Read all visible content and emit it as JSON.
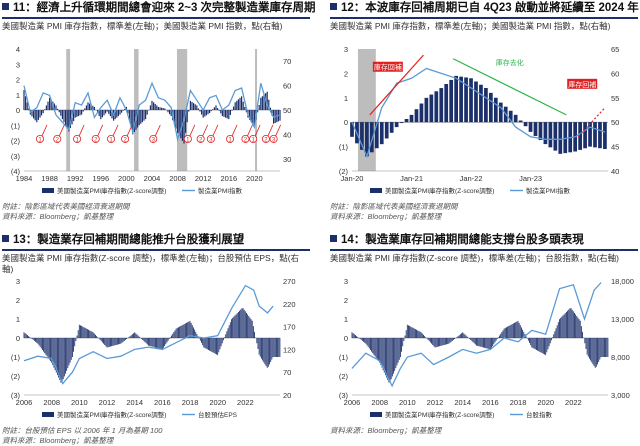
{
  "chart_data": [
    {
      "type": "bar",
      "title": "11：經濟上升循環期間總會迎來 2~3 次完整製造業庫存周期",
      "subtitle": "美國製造業 PMI 庫存指數，標準差(左軸)；美國製造業 PMI 指數，點(右軸)",
      "x_range": [
        1984,
        2024
      ],
      "x_ticks": [
        "1984",
        "1988",
        "1992",
        "1996",
        "2000",
        "2004",
        "2008",
        "2012",
        "2016",
        "2020"
      ],
      "y_left_ticks": [
        "4",
        "3",
        "2",
        "1",
        "0",
        "(1)",
        "(2)",
        "(3)",
        "(4)"
      ],
      "y_left_range": [
        -4,
        4
      ],
      "y_right_ticks": [
        "70",
        "60",
        "50",
        "40",
        "30"
      ],
      "y_right_range": [
        25,
        75
      ],
      "recession_periods": [
        [
          1990.6,
          1991.2
        ],
        [
          2001.2,
          2001.9
        ],
        [
          2007.9,
          2009.5
        ],
        [
          2020.1,
          2020.4
        ]
      ],
      "cycle_labels": [
        "1",
        "2",
        "1",
        "2",
        "1",
        "2",
        "3",
        "1",
        "2",
        "3",
        "1",
        "2",
        "1",
        "2",
        "3"
      ],
      "cycle_label_x": [
        1986.5,
        1989.2,
        1992.3,
        1995.2,
        1997.6,
        1999.8,
        2004.2,
        2009.6,
        2011.6,
        2013.2,
        2016.2,
        2018.6,
        2019.8,
        2021.8,
        2023.0
      ],
      "series": [
        {
          "name": "美國製造業PMI庫存指數(Z-score調整)",
          "values": [
            [
              1984,
              1.3
            ],
            [
              1985,
              -0.3
            ],
            [
              1986,
              -0.8
            ],
            [
              1987,
              -0.2
            ],
            [
              1988,
              0.8
            ],
            [
              1989,
              0.3
            ],
            [
              1990,
              -0.6
            ],
            [
              1991,
              -1.4
            ],
            [
              1992,
              -0.5
            ],
            [
              1993,
              -0.3
            ],
            [
              1994,
              0.5
            ],
            [
              1995,
              0.2
            ],
            [
              1996,
              -0.6
            ],
            [
              1997,
              -0.1
            ],
            [
              1998,
              -0.7
            ],
            [
              1999,
              -0.3
            ],
            [
              2000,
              0.2
            ],
            [
              2001,
              -1.6
            ],
            [
              2002,
              -1.0
            ],
            [
              2003,
              -0.6
            ],
            [
              2004,
              0.6
            ],
            [
              2005,
              0.2
            ],
            [
              2006,
              0.1
            ],
            [
              2007,
              -0.4
            ],
            [
              2008,
              -1.5
            ],
            [
              2009,
              -2.2
            ],
            [
              2010,
              0.6
            ],
            [
              2011,
              0.3
            ],
            [
              2012,
              -0.5
            ],
            [
              2013,
              -0.2
            ],
            [
              2014,
              0.3
            ],
            [
              2015,
              -0.4
            ],
            [
              2016,
              -0.6
            ],
            [
              2017,
              0.5
            ],
            [
              2018,
              0.9
            ],
            [
              2019,
              -0.5
            ],
            [
              2020,
              -1.1
            ],
            [
              2021,
              0.8
            ],
            [
              2022,
              1.2
            ],
            [
              2023,
              -0.9
            ],
            [
              2024,
              -0.7
            ]
          ]
        },
        {
          "name": "製造業PMI指數",
          "values": [
            [
              1984,
              60
            ],
            [
              1985,
              49
            ],
            [
              1986,
              51
            ],
            [
              1987,
              57
            ],
            [
              1988,
              56
            ],
            [
              1989,
              48
            ],
            [
              1990,
              45
            ],
            [
              1991,
              42
            ],
            [
              1992,
              53
            ],
            [
              1993,
              52
            ],
            [
              1994,
              57
            ],
            [
              1995,
              47
            ],
            [
              1996,
              51
            ],
            [
              1997,
              54
            ],
            [
              1998,
              48
            ],
            [
              1999,
              55
            ],
            [
              2000,
              50
            ],
            [
              2001,
              41
            ],
            [
              2002,
              52
            ],
            [
              2003,
              54
            ],
            [
              2004,
              61
            ],
            [
              2005,
              55
            ],
            [
              2006,
              54
            ],
            [
              2007,
              51
            ],
            [
              2008,
              38
            ],
            [
              2009,
              46
            ],
            [
              2010,
              58
            ],
            [
              2011,
              54
            ],
            [
              2012,
              50
            ],
            [
              2013,
              55
            ],
            [
              2014,
              56
            ],
            [
              2015,
              50
            ],
            [
              2016,
              52
            ],
            [
              2017,
              58
            ],
            [
              2018,
              59
            ],
            [
              2019,
              48
            ],
            [
              2020,
              43
            ],
            [
              2021,
              61
            ],
            [
              2022,
              52
            ],
            [
              2023,
              47
            ],
            [
              2024,
              48
            ]
          ]
        }
      ],
      "legend": [
        "美國製造業PMI庫存指數(Z-score調整)",
        "製造業PMI指數"
      ],
      "legend_position": "bottom",
      "notes": [
        "附註：陰影區域代表美國經濟衰退期間",
        "資料來源：Bloomberg；凱基整理"
      ]
    },
    {
      "type": "bar",
      "title": "12：本波庫存回補周期已自 4Q23 啟動並將延續至 2024 年",
      "subtitle": "美國製造業 PMI 庫存指數，標準差(左軸)；美國製造業 PMI 指數，點(右軸)",
      "x_range": [
        2020.0,
        2024.3
      ],
      "x_ticks": [
        "Jan-20",
        "Jan-21",
        "Jan-22",
        "Jan-23"
      ],
      "y_left_ticks": [
        "3",
        "2",
        "1",
        "0",
        "(1)",
        "(2)"
      ],
      "y_left_range": [
        -2,
        3
      ],
      "y_right_ticks": [
        "65",
        "60",
        "55",
        "50",
        "45",
        "40"
      ],
      "y_right_range": [
        40,
        65
      ],
      "recession_periods": [
        [
          2020.1,
          2020.4
        ]
      ],
      "annotations": [
        "庫存回補",
        "庫存去化",
        "庫存回補"
      ],
      "series": [
        {
          "name": "美國製造業PMI庫存指數(Z-score調整)",
          "values": [
            [
              2020.0,
              -0.6
            ],
            [
              2020.25,
              -1.4
            ],
            [
              2020.5,
              -0.9
            ],
            [
              2020.75,
              -0.2
            ],
            [
              2021.0,
              0.3
            ],
            [
              2021.25,
              1.0
            ],
            [
              2021.5,
              1.4
            ],
            [
              2021.75,
              1.9
            ],
            [
              2022.0,
              1.8
            ],
            [
              2022.25,
              1.4
            ],
            [
              2022.5,
              0.8
            ],
            [
              2022.75,
              0.3
            ],
            [
              2023.0,
              -0.4
            ],
            [
              2023.25,
              -0.9
            ],
            [
              2023.5,
              -1.3
            ],
            [
              2023.75,
              -1.2
            ],
            [
              2024.0,
              -1.0
            ],
            [
              2024.25,
              -1.1
            ]
          ]
        },
        {
          "name": "製造業PMI指數",
          "values": [
            [
              2020.0,
              50
            ],
            [
              2020.25,
              43
            ],
            [
              2020.5,
              53
            ],
            [
              2020.75,
              58
            ],
            [
              2021.0,
              59
            ],
            [
              2021.25,
              61
            ],
            [
              2021.5,
              60
            ],
            [
              2021.75,
              59
            ],
            [
              2022.0,
              57
            ],
            [
              2022.25,
              55
            ],
            [
              2022.5,
              53
            ],
            [
              2022.75,
              49
            ],
            [
              2023.0,
              47
            ],
            [
              2023.25,
              46.5
            ],
            [
              2023.5,
              46.5
            ],
            [
              2023.75,
              47
            ],
            [
              2024.0,
              49
            ],
            [
              2024.25,
              48
            ]
          ]
        }
      ],
      "legend": [
        "美國製造業PMI庫存指數(Z-score調整)",
        "製造業PMI指數"
      ],
      "legend_position": "bottom",
      "notes": [
        "附註：陰影區域代表美國經濟衰退期間",
        "資料來源：Bloomberg；凱基整理"
      ]
    },
    {
      "type": "bar",
      "title": "13：製造業存回補期間總能推升台股獲利展望",
      "subtitle": "美國製造業 PMI 庫存指數(Z-score 調整)，標準差(左軸)；台股預估 EPS，點(右軸)",
      "x_range": [
        2006,
        2024.5
      ],
      "x_ticks": [
        "2006",
        "2008",
        "2010",
        "2012",
        "2014",
        "2016",
        "2018",
        "2020",
        "2022"
      ],
      "y_left_ticks": [
        "3",
        "2",
        "1",
        "0",
        "(1)",
        "(2)",
        "(3)"
      ],
      "y_left_range": [
        -3,
        3
      ],
      "y_right_ticks": [
        "270",
        "220",
        "170",
        "120",
        "70",
        "20"
      ],
      "y_right_range": [
        20,
        270
      ],
      "series": [
        {
          "name": "美國製造業PMI庫存指數(Z-score調整)",
          "values": [
            [
              2006,
              0.3
            ],
            [
              2007,
              -0.3
            ],
            [
              2008,
              -1.3
            ],
            [
              2008.7,
              -2.4
            ],
            [
              2009.5,
              -1.0
            ],
            [
              2010,
              0.7
            ],
            [
              2011,
              0.3
            ],
            [
              2012,
              -0.5
            ],
            [
              2013,
              -0.3
            ],
            [
              2014,
              0.3
            ],
            [
              2015,
              -0.4
            ],
            [
              2016,
              -0.6
            ],
            [
              2017,
              0.5
            ],
            [
              2018,
              0.9
            ],
            [
              2019,
              -0.5
            ],
            [
              2020,
              -0.9
            ],
            [
              2021,
              1.0
            ],
            [
              2021.8,
              1.6
            ],
            [
              2022.5,
              0.9
            ],
            [
              2023,
              -0.9
            ],
            [
              2023.6,
              -1.6
            ],
            [
              2024,
              -1.0
            ]
          ]
        },
        {
          "name": "台股預估EPS",
          "values": [
            [
              2006,
              95
            ],
            [
              2007,
              105
            ],
            [
              2008,
              100
            ],
            [
              2008.8,
              45
            ],
            [
              2009.5,
              70
            ],
            [
              2010,
              100
            ],
            [
              2011,
              115
            ],
            [
              2012,
              100
            ],
            [
              2013,
              105
            ],
            [
              2014,
              120
            ],
            [
              2015,
              125
            ],
            [
              2016,
              120
            ],
            [
              2017,
              135
            ],
            [
              2018,
              150
            ],
            [
              2019,
              145
            ],
            [
              2020,
              150
            ],
            [
              2021,
              210
            ],
            [
              2022,
              260
            ],
            [
              2022.6,
              250
            ],
            [
              2023,
              215
            ],
            [
              2023.6,
              200
            ],
            [
              2024,
              215
            ]
          ]
        }
      ],
      "legend": [
        "美國製造業PMI庫存指數(Z-score調整)",
        "台股預估EPS"
      ],
      "legend_position": "bottom",
      "notes": [
        "附註：台股預估 EPS 以 2006 年 1 月為基期 100",
        "資料來源：Bloomberg；凱基整理"
      ]
    },
    {
      "type": "bar",
      "title": "14：製造業庫存回補期間總能支撐台股多頭表現",
      "subtitle": "美國製造業 PMI 庫存指數(Z-score 調整)，標準差(左軸)；台股指數，點(右軸)",
      "x_range": [
        2006,
        2024.5
      ],
      "x_ticks": [
        "2006",
        "2008",
        "2010",
        "2012",
        "2014",
        "2016",
        "2018",
        "2020",
        "2022"
      ],
      "y_left_ticks": [
        "3",
        "2",
        "1",
        "0",
        "(1)",
        "(2)",
        "(3)"
      ],
      "y_left_range": [
        -3,
        3
      ],
      "y_right_ticks": [
        "18,000",
        "13,000",
        "8,000",
        "3,000"
      ],
      "y_right_range": [
        3000,
        18000
      ],
      "series": [
        {
          "name": "美國製造業PMI庫存指數(Z-score調整)",
          "values": [
            [
              2006,
              0.3
            ],
            [
              2007,
              -0.3
            ],
            [
              2008,
              -1.3
            ],
            [
              2008.7,
              -2.4
            ],
            [
              2009.5,
              -1.0
            ],
            [
              2010,
              0.7
            ],
            [
              2011,
              0.3
            ],
            [
              2012,
              -0.5
            ],
            [
              2013,
              -0.3
            ],
            [
              2014,
              0.3
            ],
            [
              2015,
              -0.4
            ],
            [
              2016,
              -0.6
            ],
            [
              2017,
              0.5
            ],
            [
              2018,
              0.9
            ],
            [
              2019,
              -0.5
            ],
            [
              2020,
              -0.9
            ],
            [
              2021,
              1.0
            ],
            [
              2021.8,
              1.6
            ],
            [
              2022.5,
              0.9
            ],
            [
              2023,
              -0.9
            ],
            [
              2023.6,
              -1.6
            ],
            [
              2024,
              -1.0
            ]
          ]
        },
        {
          "name": "台股指數",
          "values": [
            [
              2006,
              6500
            ],
            [
              2007,
              8500
            ],
            [
              2008,
              7500
            ],
            [
              2008.9,
              4200
            ],
            [
              2009.5,
              6500
            ],
            [
              2010,
              8000
            ],
            [
              2011,
              8500
            ],
            [
              2011.9,
              7000
            ],
            [
              2013,
              8000
            ],
            [
              2014,
              9000
            ],
            [
              2015,
              8500
            ],
            [
              2016,
              9000
            ],
            [
              2017,
              10500
            ],
            [
              2018,
              10000
            ],
            [
              2019,
              11500
            ],
            [
              2020,
              11000
            ],
            [
              2021,
              17000
            ],
            [
              2022,
              17500
            ],
            [
              2022.8,
              13000
            ],
            [
              2023.5,
              16800
            ],
            [
              2024,
              17800
            ]
          ]
        }
      ],
      "legend": [
        "美國製造業PMI庫存指數(Z-score調整)",
        "台股指數"
      ],
      "legend_position": "bottom",
      "notes": [
        "資料來源：Bloomberg；凱基整理"
      ]
    }
  ],
  "colors": {
    "bar": "#1b2f6b",
    "line": "#5b9bd5",
    "recession": "#bdbdbd",
    "arrow_red": "#e02020",
    "arrow_green": "#2db34a",
    "title_rule": "#1b2f6b"
  }
}
